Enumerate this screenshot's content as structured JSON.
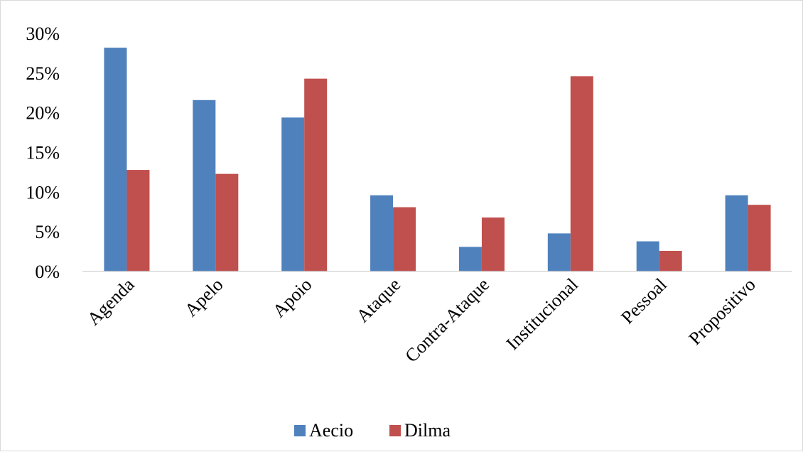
{
  "chart_data": {
    "type": "bar",
    "title": "",
    "xlabel": "",
    "ylabel": "",
    "categories": [
      "Agenda",
      "Apelo",
      "Apoio",
      "Ataque",
      "Contra-Ataque",
      "Institucional",
      "Pessoal",
      "Propositivo"
    ],
    "series": [
      {
        "name": "Aecio",
        "color": "#4f81bd",
        "values": [
          28.2,
          21.6,
          19.4,
          9.6,
          3.1,
          4.8,
          3.8,
          9.6
        ]
      },
      {
        "name": "Dilma",
        "color": "#c0504d",
        "values": [
          12.8,
          12.3,
          24.3,
          8.1,
          6.8,
          24.6,
          2.6,
          8.4
        ]
      }
    ],
    "ylim": [
      0,
      30
    ],
    "yticks": [
      "0%",
      "5%",
      "10%",
      "15%",
      "20%",
      "25%",
      "30%"
    ],
    "ytick_values": [
      0,
      5,
      10,
      15,
      20,
      25,
      30
    ],
    "grid": false,
    "legend": "bottom"
  }
}
